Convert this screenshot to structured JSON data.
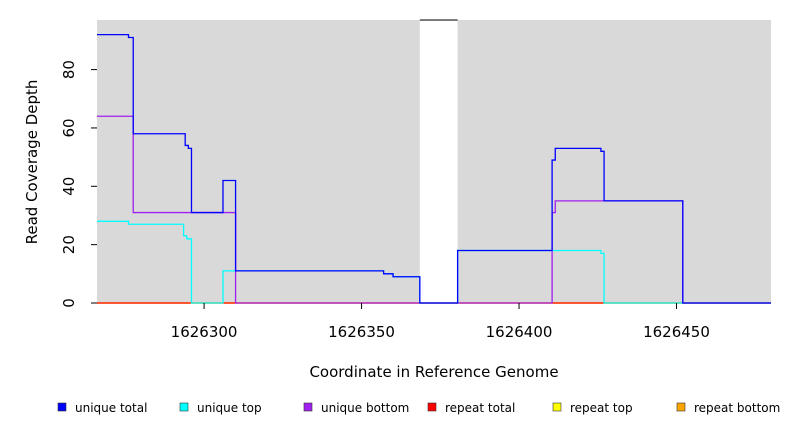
{
  "chart_data": {
    "type": "line",
    "title": "",
    "xlabel": "Coordinate in Reference Genome",
    "ylabel": "Read Coverage Depth",
    "xlim": [
      1626266,
      1626480
    ],
    "ylim": [
      0,
      97
    ],
    "x_ticks": [
      1626300,
      1626350,
      1626400,
      1626450
    ],
    "x_tick_labels": [
      "1626300",
      "1626350",
      "1626400",
      "1626450"
    ],
    "y_ticks": [
      0,
      20,
      40,
      60,
      80
    ],
    "y_tick_labels": [
      "0",
      "20",
      "40",
      "60",
      "80"
    ],
    "background_color": "#d9d9d9",
    "gap_regions": [
      [
        1626368.5,
        1626380.5
      ]
    ],
    "legend_position": "bottom",
    "series": [
      {
        "name": "unique total",
        "color": "#0000ff",
        "steps": [
          [
            1626266,
            92
          ],
          [
            1626276,
            91
          ],
          [
            1626277.5,
            58
          ],
          [
            1626294,
            54
          ],
          [
            1626295,
            53
          ],
          [
            1626296,
            31
          ],
          [
            1626306,
            42
          ],
          [
            1626310,
            11
          ],
          [
            1626357,
            10
          ],
          [
            1626360,
            9
          ],
          [
            1626368.5,
            0
          ],
          [
            1626380.5,
            18
          ],
          [
            1626410.5,
            49
          ],
          [
            1626411.5,
            53
          ],
          [
            1626426,
            52
          ],
          [
            1626427,
            35
          ],
          [
            1626452,
            0
          ],
          [
            1626480,
            0
          ]
        ]
      },
      {
        "name": "unique top",
        "color": "#00ffff",
        "steps": [
          [
            1626266,
            28
          ],
          [
            1626276,
            27
          ],
          [
            1626293.5,
            23
          ],
          [
            1626294.5,
            22
          ],
          [
            1626296,
            0
          ],
          [
            1626306,
            11
          ],
          [
            1626310,
            11
          ],
          [
            1626357,
            10
          ],
          [
            1626360,
            9
          ],
          [
            1626368.5,
            0
          ],
          [
            1626380.5,
            18
          ],
          [
            1626426,
            17
          ],
          [
            1626427,
            0
          ],
          [
            1626480,
            0
          ]
        ]
      },
      {
        "name": "unique bottom",
        "color": "#a020f0",
        "steps": [
          [
            1626266,
            64
          ],
          [
            1626277.5,
            31
          ],
          [
            1626310,
            0
          ],
          [
            1626410.5,
            31
          ],
          [
            1626411.5,
            35
          ],
          [
            1626452,
            0
          ],
          [
            1626480,
            0
          ]
        ]
      },
      {
        "name": "repeat total",
        "color": "#ff0000",
        "steps": [
          [
            1626266,
            0
          ],
          [
            1626480,
            0
          ]
        ]
      },
      {
        "name": "repeat top",
        "color": "#ffff00",
        "steps": [
          [
            1626266,
            0
          ],
          [
            1626480,
            0
          ]
        ]
      },
      {
        "name": "repeat bottom",
        "color": "#ffa500",
        "steps": [
          [
            1626266,
            0
          ],
          [
            1626480,
            0
          ]
        ]
      }
    ]
  }
}
